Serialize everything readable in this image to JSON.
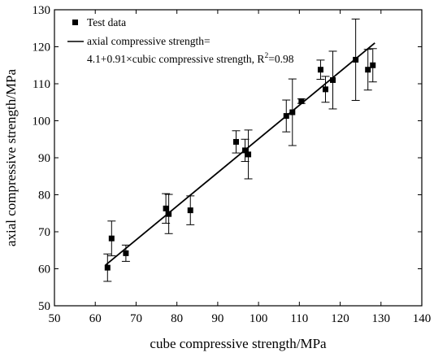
{
  "chart_data": {
    "type": "scatter",
    "xlabel": "cube compressive strength/MPa",
    "ylabel": "axial compressive strength/MPa",
    "xlim": [
      50,
      140
    ],
    "ylim": [
      50,
      130
    ],
    "xticks": [
      50,
      60,
      70,
      80,
      90,
      100,
      110,
      120,
      130,
      140
    ],
    "yticks": [
      50,
      60,
      70,
      80,
      90,
      100,
      110,
      120,
      130
    ],
    "grid": false,
    "legend_position": "top-left",
    "series": [
      {
        "name": "Test data",
        "type": "scatter",
        "marker": "square",
        "color": "#000000",
        "points": [
          {
            "x": 63.0,
            "y": 60.3,
            "err": 3.7
          },
          {
            "x": 64.0,
            "y": 68.2,
            "err": 4.7
          },
          {
            "x": 67.5,
            "y": 64.2,
            "err": 2.2
          },
          {
            "x": 77.3,
            "y": 76.3,
            "err": 4.0
          },
          {
            "x": 78.0,
            "y": 74.8,
            "err": 5.3
          },
          {
            "x": 83.3,
            "y": 75.8,
            "err": 3.9
          },
          {
            "x": 94.5,
            "y": 94.3,
            "err": 3.0
          },
          {
            "x": 96.7,
            "y": 92.0,
            "err": 3.0
          },
          {
            "x": 97.5,
            "y": 90.9,
            "err": 6.6
          },
          {
            "x": 106.8,
            "y": 101.3,
            "err": 4.3
          },
          {
            "x": 108.3,
            "y": 102.3,
            "err": 9.0
          },
          {
            "x": 110.5,
            "y": 105.3,
            "err": 0.6
          },
          {
            "x": 115.2,
            "y": 113.8,
            "err": 2.6
          },
          {
            "x": 116.4,
            "y": 108.5,
            "err": 3.5
          },
          {
            "x": 118.2,
            "y": 111.0,
            "err": 7.8
          },
          {
            "x": 123.8,
            "y": 116.5,
            "err": 11.0
          },
          {
            "x": 126.8,
            "y": 113.8,
            "err": 5.5
          },
          {
            "x": 128.0,
            "y": 115.0,
            "err": 4.5
          }
        ]
      },
      {
        "name": "axial compressive strength=",
        "name_line2_prefix": "4.1+0.91×cubic compressive strength, R",
        "name_line2_sup": "2",
        "name_line2_suffix": "=0.98",
        "type": "line",
        "color": "#000000",
        "intercept": 4.1,
        "slope": 0.91,
        "x_range": [
          62.5,
          128.5
        ]
      }
    ]
  }
}
